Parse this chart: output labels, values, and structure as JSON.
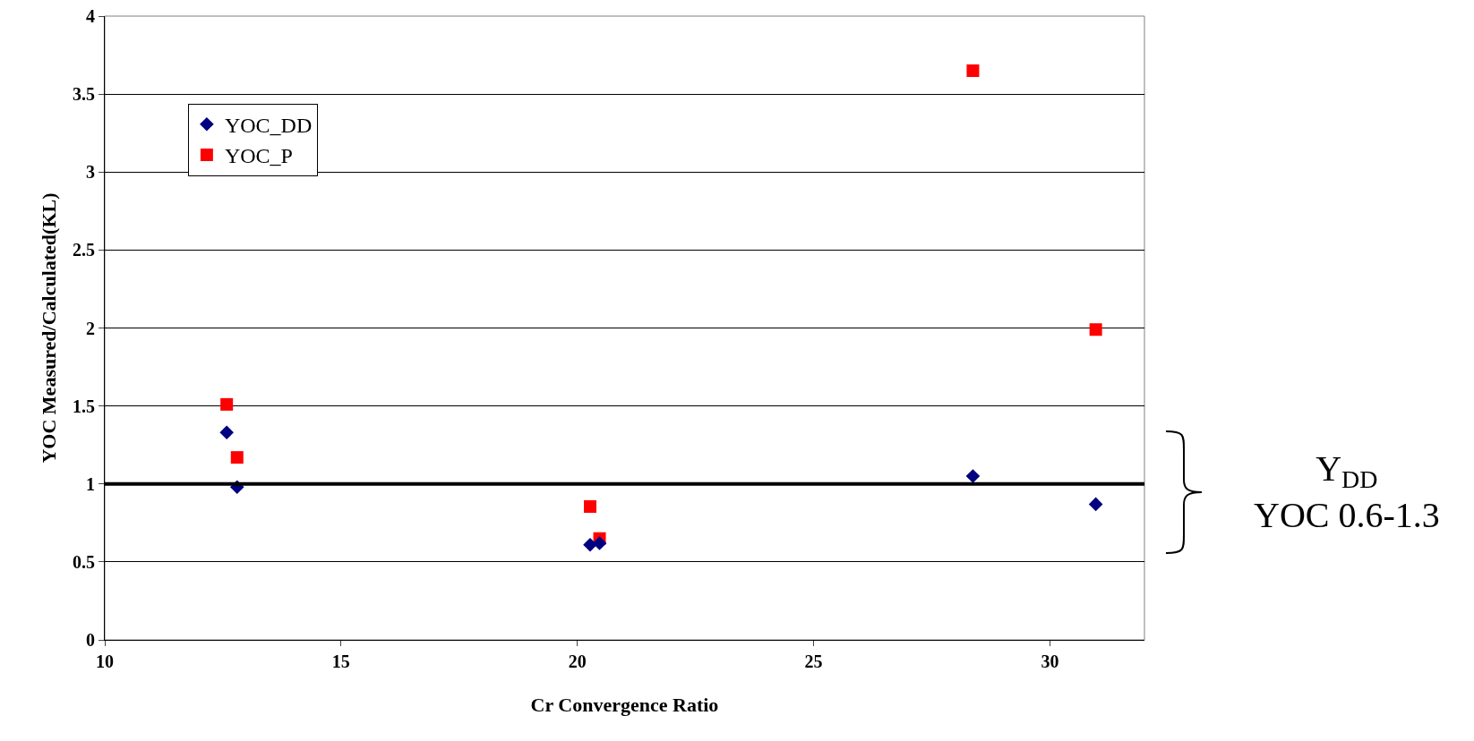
{
  "chart_data": {
    "type": "scatter",
    "xlabel": "Cr Convergence Ratio",
    "ylabel": "YOC Measured/Calculated(KL)",
    "xlim": [
      10,
      32
    ],
    "xticks": [
      10,
      15,
      20,
      25,
      30
    ],
    "ylim": [
      0,
      4
    ],
    "yticks": [
      0,
      0.5,
      1,
      1.5,
      2,
      2.5,
      3,
      3.5,
      4
    ],
    "grid": "y",
    "legend": "top left",
    "series": [
      {
        "name": "YOC_DD",
        "color": "#000080",
        "marker": "diamond",
        "x": [
          12.58,
          12.8,
          20.27,
          20.47,
          28.37,
          30.97
        ],
        "values": [
          1.33,
          0.98,
          0.61,
          0.62,
          1.05,
          0.87
        ]
      },
      {
        "name": "YOC_P",
        "color": "#ff0000",
        "marker": "square",
        "x": [
          12.58,
          12.8,
          20.27,
          20.47,
          28.37,
          30.97
        ],
        "values": [
          1.51,
          1.17,
          0.855,
          0.65,
          3.65,
          1.99
        ]
      }
    ],
    "ref_lines": [
      {
        "axis": "y",
        "value": 1,
        "color": "#000000"
      }
    ],
    "annotations": [
      "Y$_{DD}$\nYOC 0.6-1.3"
    ]
  }
}
